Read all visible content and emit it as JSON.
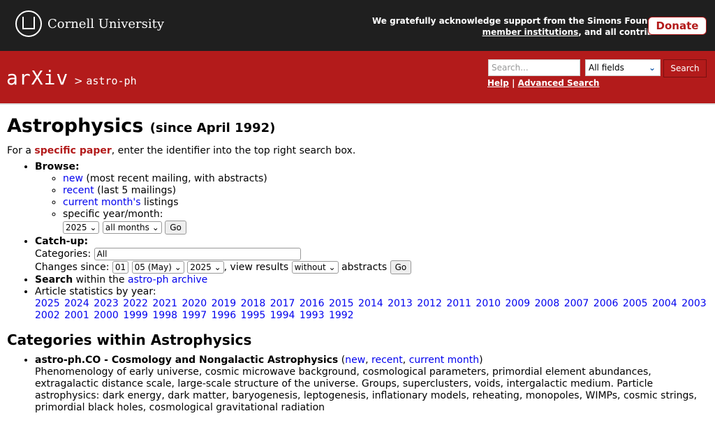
{
  "header": {
    "university": "Cornell University",
    "ack_line1": "We gratefully acknowledge support from the Simons Foundation,",
    "ack_link": "member institutions",
    "ack_line2_tail": ", and all contributors.",
    "donate": "Donate"
  },
  "nav": {
    "logo": "arXiv",
    "crumb_sep": ">",
    "crumb": "astro-ph",
    "search_placeholder": "Search...",
    "field_select": "All fields",
    "search_button": "Search",
    "help": "Help",
    "help_sep": "|",
    "advanced": "Advanced Search"
  },
  "page": {
    "title": "Astrophysics",
    "since": "(since April 1992)",
    "intro_pre": "For a ",
    "intro_link": "specific paper",
    "intro_post": ", enter the identifier into the top right search box.",
    "browse_label": "Browse:",
    "new_link": "new",
    "new_desc": " (most recent mailing, with abstracts)",
    "recent_link": "recent",
    "recent_desc": " (last 5 mailings)",
    "current_link": "current month's",
    "current_desc": " listings",
    "specific_label": "specific year/month: ",
    "year_select": "2025",
    "month_select": "all months",
    "go": "Go",
    "catchup_label": "Catch-up:",
    "categories_label": "Categories: ",
    "categories_select": "All",
    "changes_label": "Changes since: ",
    "day_select": "01",
    "month2_select": "05 (May)",
    "year2_select": "2025",
    "view_results": ", view results ",
    "abstracts_select": "without",
    "abstracts_label": " abstracts ",
    "search_label": "Search",
    "search_within": " within the ",
    "archive_link": "astro-ph archive",
    "stats_label": "Article statistics by year:",
    "years": [
      "2025",
      "2024",
      "2023",
      "2022",
      "2021",
      "2020",
      "2019",
      "2018",
      "2017",
      "2016",
      "2015",
      "2014",
      "2013",
      "2012",
      "2011",
      "2010",
      "2009",
      "2008",
      "2007",
      "2006",
      "2005",
      "2004",
      "2003",
      "2002",
      "2001",
      "2000",
      "1999",
      "1998",
      "1997",
      "1996",
      "1995",
      "1994",
      "1993",
      "1992"
    ],
    "categories_heading": "Categories within Astrophysics",
    "cat_name": "astro-ph.CO - Cosmology and Nongalactic Astrophysics",
    "cat_new": "new",
    "cat_recent": "recent",
    "cat_current": "current month",
    "cat_desc": "Phenomenology of early universe, cosmic microwave background, cosmological parameters, primordial element abundances, extragalactic distance scale, large-scale structure of the universe. Groups, superclusters, voids, intergalactic medium. Particle astrophysics: dark energy, dark matter, baryogenesis, leptogenesis, inflationary models, reheating, monopoles, WIMPs, cosmic strings, primordial black holes, cosmological gravitational radiation"
  }
}
